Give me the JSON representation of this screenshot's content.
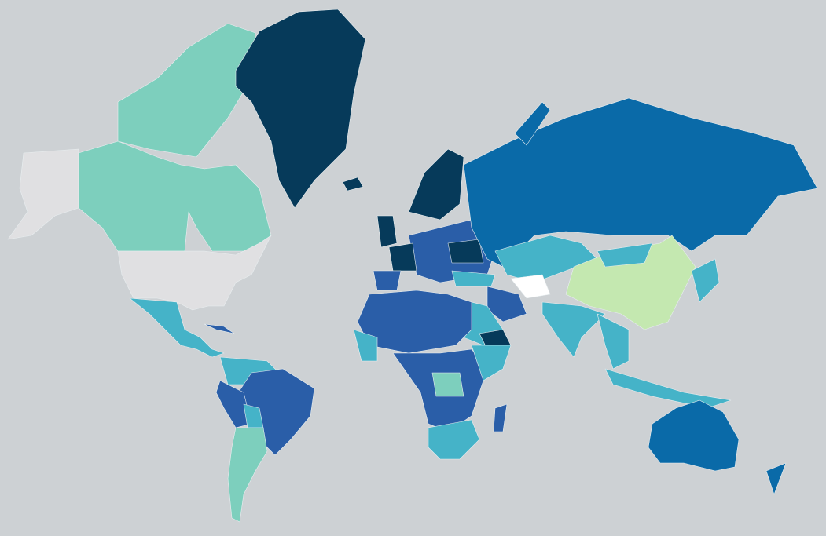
{
  "palette": [
    "#063a5a",
    "#0a6aa8",
    "#2a5ea8",
    "#45b3c8",
    "#7dcfbd",
    "#c4e8b0",
    "#e0e0e2",
    "#ffffff"
  ]
}
